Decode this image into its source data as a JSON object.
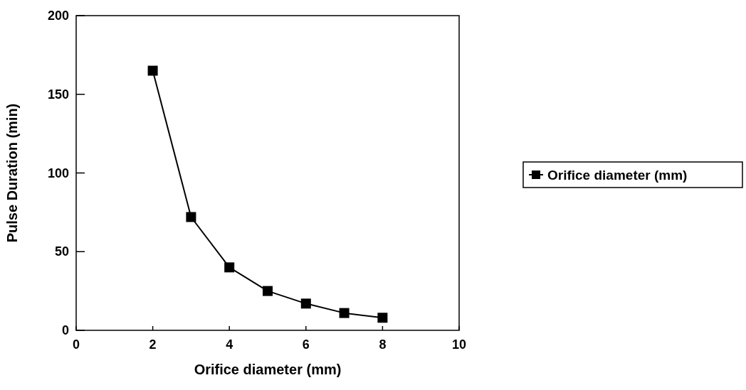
{
  "chart_data": {
    "type": "line",
    "xlabel": "Orifice diameter (mm)",
    "ylabel": "Pulse Duration (min)",
    "x": [
      2,
      3,
      4,
      5,
      6,
      7,
      8
    ],
    "series": [
      {
        "name": "Orifice diameter (mm)",
        "color": "#000000",
        "values": [
          165,
          72,
          40,
          25,
          17,
          11,
          8
        ]
      }
    ],
    "xlim": [
      0,
      10
    ],
    "xticks": [
      0,
      2,
      4,
      6,
      8,
      10
    ],
    "ylim": [
      0,
      200
    ],
    "yticks": [
      0,
      50,
      100,
      150,
      200
    ],
    "grid": false,
    "legend": "right",
    "marker": "square",
    "line_style": "solid"
  }
}
